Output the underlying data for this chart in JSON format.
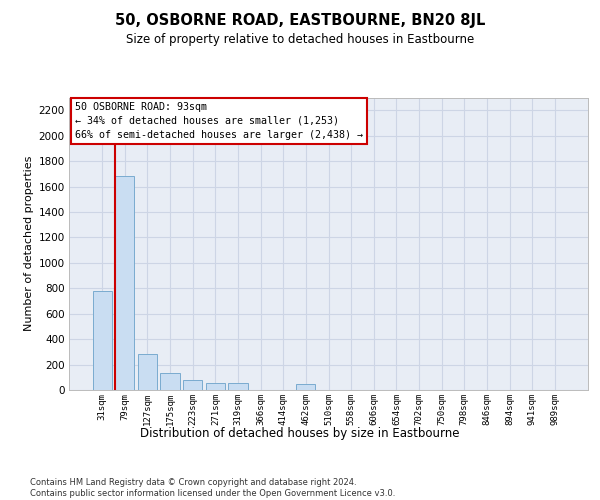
{
  "title": "50, OSBORNE ROAD, EASTBOURNE, BN20 8JL",
  "subtitle": "Size of property relative to detached houses in Eastbourne",
  "xlabel": "Distribution of detached houses by size in Eastbourne",
  "ylabel": "Number of detached properties",
  "bar_categories": [
    "31sqm",
    "79sqm",
    "127sqm",
    "175sqm",
    "223sqm",
    "271sqm",
    "319sqm",
    "366sqm",
    "414sqm",
    "462sqm",
    "510sqm",
    "558sqm",
    "606sqm",
    "654sqm",
    "702sqm",
    "750sqm",
    "798sqm",
    "846sqm",
    "894sqm",
    "941sqm",
    "989sqm"
  ],
  "bar_values": [
    780,
    1680,
    285,
    130,
    80,
    55,
    55,
    0,
    0,
    50,
    0,
    0,
    0,
    0,
    0,
    0,
    0,
    0,
    0,
    0,
    0
  ],
  "bar_color": "#c9ddf2",
  "bar_edge_color": "#7aabcf",
  "ylim_max": 2300,
  "ytick_step": 200,
  "vline_position": 0.575,
  "vline_color": "#cc0000",
  "ann_line1": "50 OSBORNE ROAD: 93sqm",
  "ann_line2": "← 34% of detached houses are smaller (1,253)",
  "ann_line3": "66% of semi-detached houses are larger (2,438) →",
  "ann_box_edgecolor": "#cc0000",
  "grid_color": "#cdd5e5",
  "bg_color": "#e8edf5",
  "footer1": "Contains HM Land Registry data © Crown copyright and database right 2024.",
  "footer2": "Contains public sector information licensed under the Open Government Licence v3.0."
}
